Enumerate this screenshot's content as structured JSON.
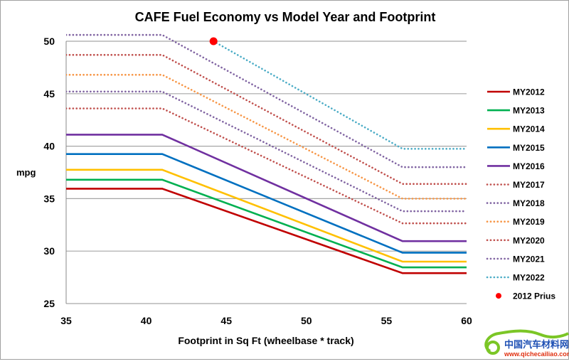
{
  "chart_data": {
    "type": "line",
    "title": "CAFE Fuel Economy vs Model Year and Footprint",
    "xlabel": "Footprint in Sq Ft (wheelbase * track)",
    "ylabel": "mpg",
    "xlim": [
      35,
      60
    ],
    "ylim": [
      25,
      50
    ],
    "xticks": [
      "35",
      "40",
      "45",
      "50",
      "55",
      "60"
    ],
    "yticks": [
      "25",
      "30",
      "35",
      "40",
      "45",
      "50"
    ],
    "grid": "horizontal",
    "legend": "right",
    "series": [
      {
        "name": "MY2012",
        "color": "#c00000",
        "style": "solid",
        "x": [
          35,
          41,
          56,
          60
        ],
        "y": [
          35.95,
          35.95,
          27.9,
          27.9
        ]
      },
      {
        "name": "MY2013",
        "color": "#00b050",
        "style": "solid",
        "x": [
          35,
          41,
          56,
          60
        ],
        "y": [
          36.8,
          36.8,
          28.45,
          28.45
        ]
      },
      {
        "name": "MY2014",
        "color": "#ffc000",
        "style": "solid",
        "x": [
          35,
          41,
          56,
          60
        ],
        "y": [
          37.75,
          37.75,
          29.0,
          29.0
        ]
      },
      {
        "name": "MY2015",
        "color": "#0070c0",
        "style": "solid",
        "x": [
          35,
          41,
          56,
          60
        ],
        "y": [
          39.25,
          39.25,
          29.85,
          29.85
        ]
      },
      {
        "name": "MY2016",
        "color": "#7030a0",
        "style": "solid",
        "x": [
          35,
          41,
          56,
          60
        ],
        "y": [
          41.1,
          41.1,
          30.95,
          30.95
        ]
      },
      {
        "name": "MY2017",
        "color": "#c0504d",
        "style": "dotted",
        "x": [
          35,
          41,
          56,
          60
        ],
        "y": [
          43.6,
          43.6,
          32.65,
          32.65
        ]
      },
      {
        "name": "MY2018",
        "color": "#8064a2",
        "style": "dotted",
        "x": [
          35,
          41,
          56,
          60
        ],
        "y": [
          45.2,
          45.2,
          33.8,
          33.8
        ]
      },
      {
        "name": "MY2019",
        "color": "#f79646",
        "style": "dotted",
        "x": [
          35,
          41,
          56,
          60
        ],
        "y": [
          46.8,
          46.8,
          35.0,
          35.0
        ]
      },
      {
        "name": "MY2020",
        "color": "#c0504d",
        "style": "dotted",
        "x": [
          35,
          41,
          56,
          60
        ],
        "y": [
          48.7,
          48.7,
          36.4,
          36.4
        ]
      },
      {
        "name": "MY2021",
        "color": "#8064a2",
        "style": "dotted",
        "x": [
          35,
          41,
          56,
          60
        ],
        "y": [
          50.6,
          50.6,
          38.0,
          38.0
        ]
      },
      {
        "name": "MY2022",
        "color": "#4bacc6",
        "style": "dotted",
        "x": [
          44.2,
          56,
          60
        ],
        "y": [
          50.0,
          39.75,
          39.75
        ]
      }
    ],
    "points": [
      {
        "name": "2012 Prius",
        "color": "#ff0000",
        "x": 44.2,
        "y": 50.0
      }
    ]
  },
  "watermark": {
    "text": "中国汽车材料网",
    "url_text": "www.qichecailiao.com"
  }
}
